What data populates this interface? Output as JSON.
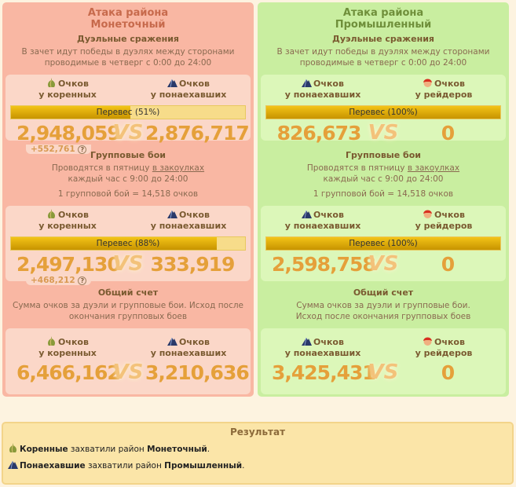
{
  "columns": [
    {
      "theme": "red",
      "title1": "Атака района",
      "title2": "Монеточный",
      "duel": {
        "header": "Дуэльные сражения",
        "desc1": "В зачет идут победы в дуэлях между сторонами",
        "desc2": "проводимые в четверг с 0:00 до 24:00"
      },
      "group": {
        "header": "Групповые бои",
        "desc1": "Проводятся в пятницу",
        "link": "в закоулках",
        "desc2": "каждый час с 9:00 до 24:00",
        "rate": "1 групповой бой = 14,518 очков"
      },
      "total": {
        "header": "Общий счет",
        "desc1": "Сумма очков за дуэли и групповые бои. Исход после",
        "desc2": "окончания групповых боев"
      },
      "left": {
        "icon": "onion-dome-icon",
        "l1": "Очков",
        "l2": "у коренных"
      },
      "right": {
        "icon": "mountain-icon",
        "l1": "Очков",
        "l2": "у понаехавших"
      },
      "boxes": [
        {
          "bar": "Перевес (51%)",
          "percent": 51,
          "a": "2,948,059",
          "b": "2,876,717",
          "bonus": "+552,761"
        },
        {
          "bar": "Перевес (88%)",
          "percent": 88,
          "a": "2,497,130",
          "b": "333,919",
          "bonus": "+468,212"
        },
        {
          "a": "6,466,162",
          "b": "3,210,636"
        }
      ]
    },
    {
      "theme": "green",
      "title1": "Атака района",
      "title2": "Промышленный",
      "duel": {
        "header": "Дуэльные сражения",
        "desc1": "В зачет идут победы в дуэлях между сторонами",
        "desc2": "проводимые в четверг с 0:00 до 24:00"
      },
      "group": {
        "header": "Групповые бои",
        "desc1": "Проводятся в пятницу",
        "link": "в закоулках",
        "desc2": "каждый час с 9:00 до 24:00",
        "rate": "1 групповой бой = 14,518 очков"
      },
      "total": {
        "header": "Общий счет",
        "desc1": "Сумма очков за дуэли и групповые бои.",
        "desc2": "Исход после окончания групповых боев"
      },
      "left": {
        "icon": "mountain-icon",
        "l1": "Очков",
        "l2": "у понаехавших"
      },
      "right": {
        "icon": "raider-icon",
        "l1": "Очков",
        "l2": "у рейдеров"
      },
      "boxes": [
        {
          "bar": "Перевес (100%)",
          "percent": 100,
          "a": "826,673",
          "b": "0"
        },
        {
          "bar": "Перевес (100%)",
          "percent": 100,
          "a": "2,598,758",
          "b": "0"
        },
        {
          "a": "3,425,431",
          "b": "0"
        }
      ]
    }
  ],
  "vs": "VS",
  "help": "?",
  "result": {
    "title": "Результат",
    "lines": [
      {
        "icon": "onion-dome-icon",
        "faction": "Коренные",
        "mid": " захватили район ",
        "district": "Монеточный",
        "end": "."
      },
      {
        "icon": "mountain-icon",
        "faction": "Понаехавшие",
        "mid": " захватили район ",
        "district": "Промышленный",
        "end": "."
      }
    ]
  }
}
